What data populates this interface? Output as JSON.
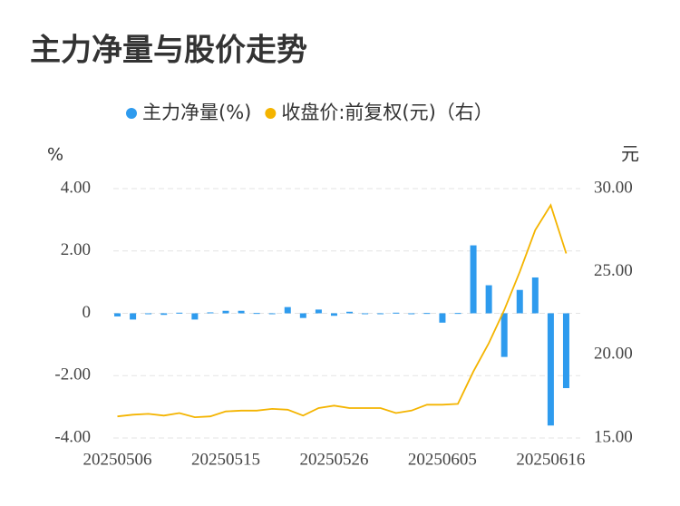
{
  "chart_data": {
    "type": "bar-line",
    "title": "主力净量与股价走势",
    "y_label": "%",
    "y2_label": "元",
    "categories": [
      "20250506",
      null,
      null,
      null,
      null,
      null,
      null,
      "20250515",
      null,
      null,
      null,
      null,
      null,
      null,
      "20250526",
      null,
      null,
      null,
      null,
      null,
      null,
      "20250605",
      null,
      null,
      null,
      null,
      null,
      null,
      "20250616",
      null
    ],
    "series": [
      {
        "name": "主力净量(%)",
        "type": "bar",
        "color": "#2e9bee",
        "values": [
          -0.1,
          -0.2,
          -0.03,
          -0.05,
          0.02,
          -0.2,
          0.03,
          0.08,
          0.08,
          0.01,
          -0.02,
          0.2,
          -0.15,
          0.12,
          -0.08,
          0.05,
          -0.02,
          -0.02,
          0.02,
          -0.03,
          0.01,
          -0.3,
          0.01,
          2.18,
          0.9,
          -1.4,
          0.75,
          1.15,
          -3.6,
          -2.4
        ]
      },
      {
        "name": "收盘价:前复权(元)（右）",
        "type": "line",
        "axis": "y2",
        "color": "#f4b400",
        "values": [
          16.3,
          16.4,
          16.45,
          16.35,
          16.5,
          16.25,
          16.3,
          16.6,
          16.65,
          16.65,
          16.75,
          16.7,
          16.35,
          16.8,
          16.95,
          16.8,
          16.8,
          16.8,
          16.5,
          16.65,
          17.0,
          17.0,
          17.05,
          19.0,
          20.7,
          22.7,
          25.0,
          27.5,
          29.0,
          26.1
        ]
      }
    ],
    "ylim": [
      -4,
      4
    ],
    "yticks": [
      {
        "value": 4,
        "label": "4.00"
      },
      {
        "value": 2,
        "label": "2.00"
      },
      0,
      {
        "value": -2,
        "label": "-2.00"
      },
      {
        "value": -4,
        "label": "-4.00"
      }
    ],
    "y2lim": [
      15,
      30
    ],
    "y2ticks": [
      {
        "value": 30,
        "label": "30.00"
      },
      {
        "value": 25,
        "label": "25.00"
      },
      {
        "value": 20,
        "label": "20.00"
      },
      {
        "value": 15,
        "label": "15.00"
      }
    ],
    "grid": true
  }
}
